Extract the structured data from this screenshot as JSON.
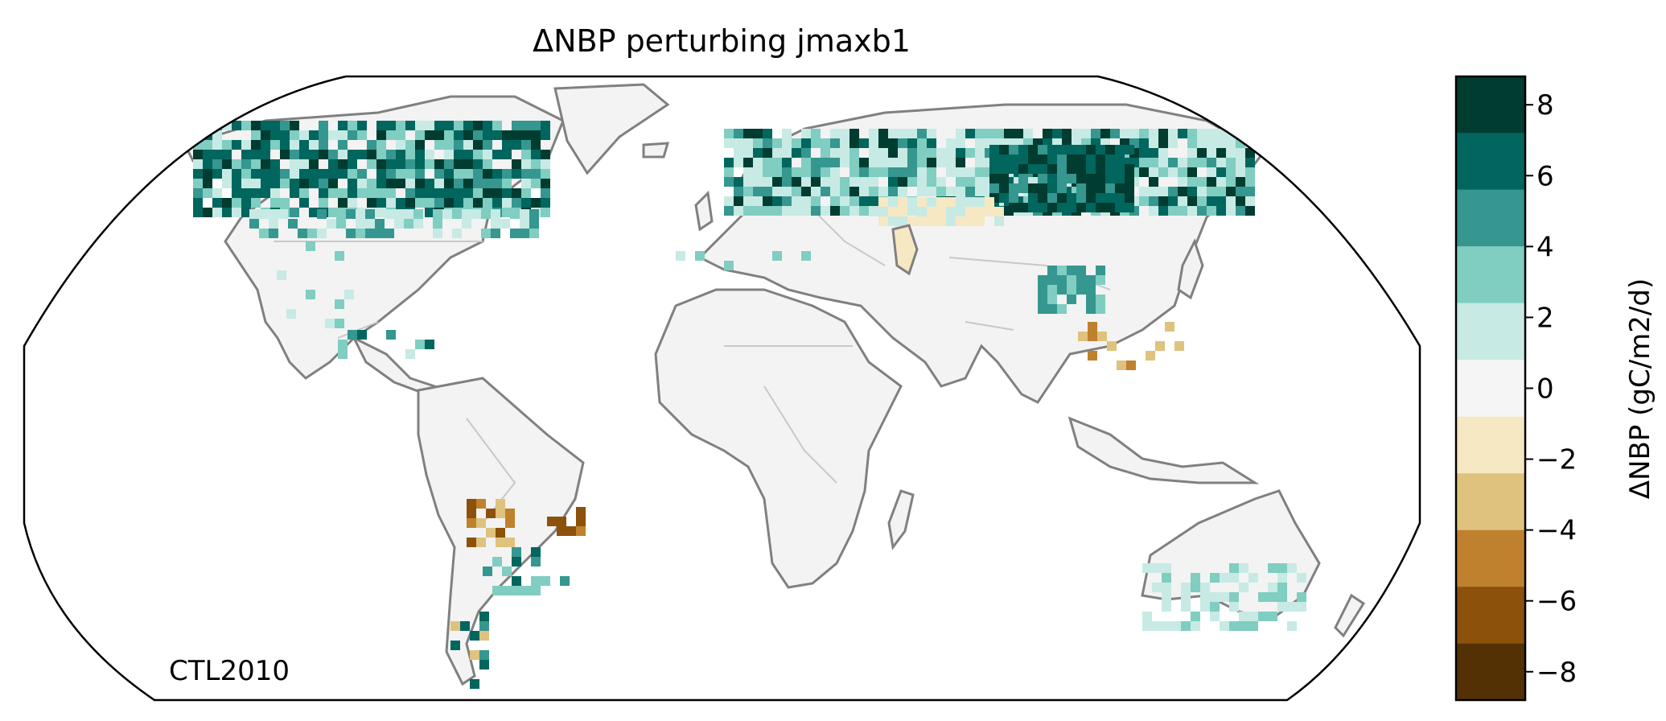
{
  "title": "ΔNBP perturbing jmaxb1",
  "map_label": "CTL2010",
  "projection": "robinson",
  "colorbar": {
    "label": "ΔNBP (gC/m2/d)",
    "ticks": [
      "8",
      "6",
      "4",
      "2",
      "0",
      "−2",
      "−4",
      "−6",
      "−8"
    ],
    "tick_values": [
      8,
      6,
      4,
      2,
      0,
      -2,
      -4,
      -6,
      -8
    ],
    "range": [
      -8.8,
      8.8
    ],
    "bins": [
      {
        "from": 7.2,
        "to": 8.8,
        "color": "#003c30"
      },
      {
        "from": 5.6,
        "to": 7.2,
        "color": "#01665e"
      },
      {
        "from": 4.0,
        "to": 5.6,
        "color": "#35978f"
      },
      {
        "from": 2.4,
        "to": 4.0,
        "color": "#80cdc1"
      },
      {
        "from": 0.8,
        "to": 2.4,
        "color": "#c7eae5"
      },
      {
        "from": -0.8,
        "to": 0.8,
        "color": "#f5f5f5"
      },
      {
        "from": -2.4,
        "to": -0.8,
        "color": "#f6e8c3"
      },
      {
        "from": -4.0,
        "to": -2.4,
        "color": "#dfc27d"
      },
      {
        "from": -5.6,
        "to": -4.0,
        "color": "#bf812d"
      },
      {
        "from": -7.2,
        "to": -5.6,
        "color": "#8c510a"
      },
      {
        "from": -8.8,
        "to": -7.2,
        "color": "#543005"
      }
    ]
  },
  "colors": {
    "land": "#f3f3f3",
    "coastline": "#808080",
    "border": "#c8c8c8",
    "frame": "#000000"
  }
}
